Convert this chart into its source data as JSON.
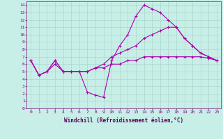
{
  "title": "",
  "xlabel": "Windchill (Refroidissement éolien,°C)",
  "ylabel": "",
  "bg_color": "#c8eee8",
  "grid_color": "#aad8cc",
  "line_color": "#aa00aa",
  "xlim": [
    -0.5,
    23.5
  ],
  "ylim": [
    0,
    14.5
  ],
  "xticks": [
    0,
    1,
    2,
    3,
    4,
    5,
    6,
    7,
    8,
    9,
    10,
    11,
    12,
    13,
    14,
    15,
    16,
    17,
    18,
    19,
    20,
    21,
    22,
    23
  ],
  "yticks": [
    0,
    1,
    2,
    3,
    4,
    5,
    6,
    7,
    8,
    9,
    10,
    11,
    12,
    13,
    14
  ],
  "line1_x": [
    0,
    1,
    2,
    3,
    4,
    5,
    6,
    7,
    8,
    9,
    10,
    11,
    12,
    13,
    14,
    15,
    16,
    17,
    18,
    19,
    20,
    21,
    22,
    23
  ],
  "line1_y": [
    6.5,
    4.5,
    5.0,
    6.5,
    5.0,
    5.0,
    5.0,
    2.2,
    1.8,
    1.5,
    6.5,
    8.5,
    10.0,
    12.5,
    14.0,
    13.5,
    13.0,
    12.0,
    11.0,
    9.5,
    8.5,
    7.5,
    7.0,
    6.5
  ],
  "line2_x": [
    0,
    1,
    2,
    3,
    4,
    5,
    6,
    7,
    8,
    9,
    10,
    11,
    12,
    13,
    14,
    15,
    16,
    17,
    18,
    19,
    20,
    21,
    22,
    23
  ],
  "line2_y": [
    6.5,
    4.5,
    5.0,
    6.5,
    5.0,
    5.0,
    5.0,
    5.0,
    5.5,
    6.0,
    7.0,
    7.5,
    8.0,
    8.5,
    9.5,
    10.0,
    10.5,
    11.0,
    11.0,
    9.5,
    8.5,
    7.5,
    7.0,
    6.5
  ],
  "line3_x": [
    0,
    1,
    2,
    3,
    4,
    5,
    6,
    7,
    8,
    9,
    10,
    11,
    12,
    13,
    14,
    15,
    16,
    17,
    18,
    19,
    20,
    21,
    22,
    23
  ],
  "line3_y": [
    6.5,
    4.5,
    5.0,
    6.0,
    5.0,
    5.0,
    5.0,
    5.0,
    5.5,
    5.5,
    6.0,
    6.0,
    6.5,
    6.5,
    7.0,
    7.0,
    7.0,
    7.0,
    7.0,
    7.0,
    7.0,
    7.0,
    6.8,
    6.5
  ],
  "marker": "+",
  "markersize": 3.0,
  "linewidth": 0.8,
  "tick_fontsize": 4.5,
  "xlabel_fontsize": 5.5
}
